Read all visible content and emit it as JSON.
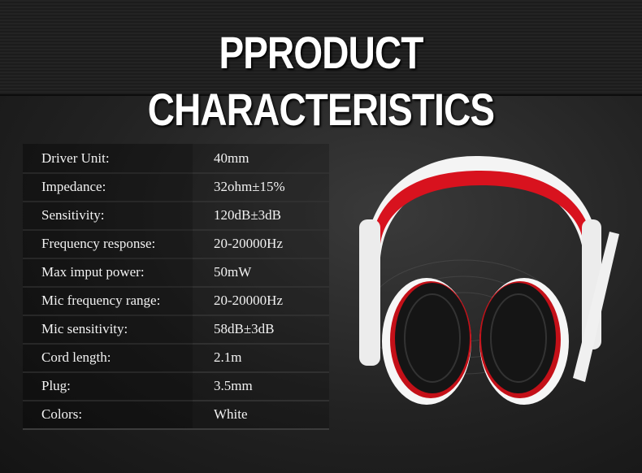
{
  "header": {
    "title": "PPRODUCT CHARACTERISTICS"
  },
  "table": {
    "rows": [
      [
        "Driver Unit:",
        "40mm"
      ],
      [
        "Impedance:",
        "32ohm±15%"
      ],
      [
        "Sensitivity:",
        "120dB±3dB"
      ],
      [
        "Frequency response:",
        "20-20000Hz"
      ],
      [
        "Max imput power:",
        "50mW"
      ],
      [
        "Mic frequency range:",
        "20-20000Hz"
      ],
      [
        "Mic sensitivity:",
        "58dB±3dB"
      ],
      [
        "Cord length:",
        "2.1m"
      ],
      [
        "Plug:",
        "3.5mm"
      ],
      [
        "Colors:",
        "White"
      ]
    ]
  }
}
